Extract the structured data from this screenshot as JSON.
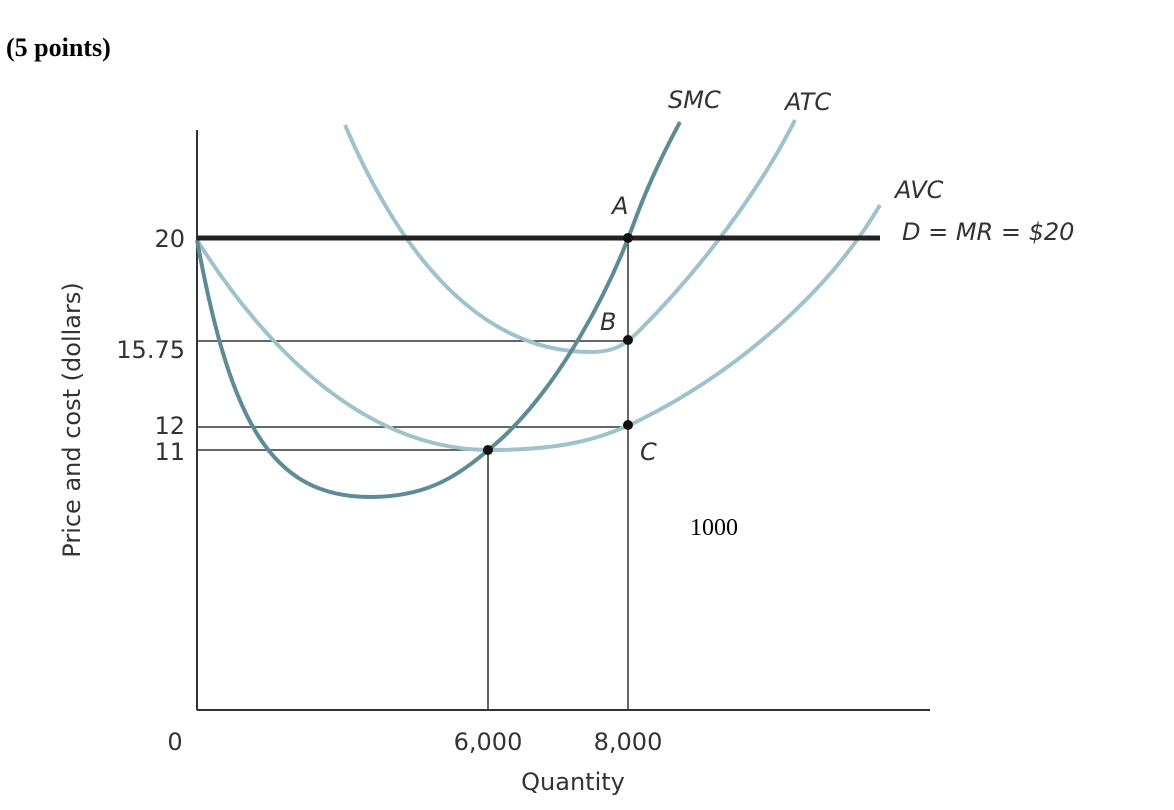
{
  "header": {
    "title": "(5 points)"
  },
  "diagram": {
    "curves": [
      "SMC",
      "ATC",
      "AVC"
    ],
    "demand_label": "D = MR = $20",
    "points": [
      "A",
      "B",
      "C"
    ],
    "y_axis": {
      "label": "Price and cost (dollars)",
      "ticks": [
        "20",
        "15.75",
        "12",
        "11"
      ]
    },
    "x_axis": {
      "label": "Quantity",
      "ticks": [
        "0",
        "6,000",
        "8,000"
      ]
    },
    "note": "1000"
  }
}
